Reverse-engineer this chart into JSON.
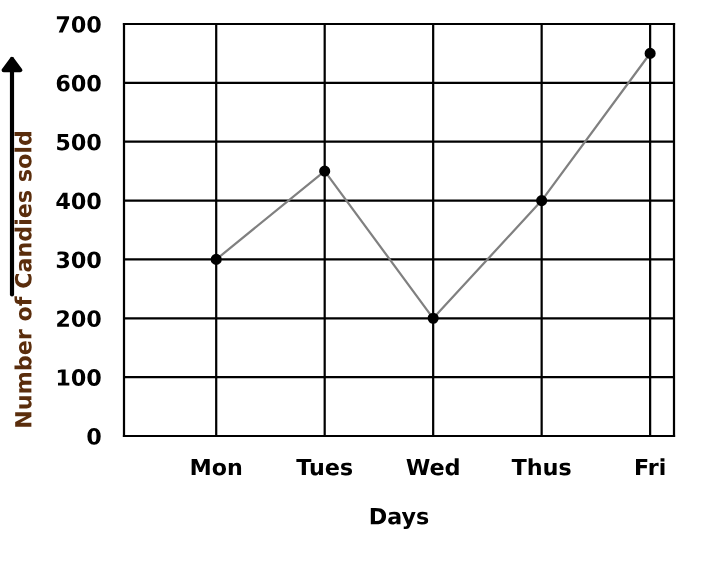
{
  "chart_data": {
    "type": "line",
    "xlabel": "Days",
    "ylabel": "Number of Candies sold",
    "categories": [
      "Mon",
      "Tues",
      "Wed",
      "Thus",
      "Fri"
    ],
    "series": [
      {
        "color": "#808080",
        "values": [
          300,
          450,
          200,
          400,
          650
        ]
      }
    ],
    "ylim": [
      0,
      700
    ],
    "yticks": [
      0,
      100,
      200,
      300,
      400,
      500,
      600,
      700
    ],
    "grid": true,
    "marker": "circle",
    "line_style": "solid"
  }
}
